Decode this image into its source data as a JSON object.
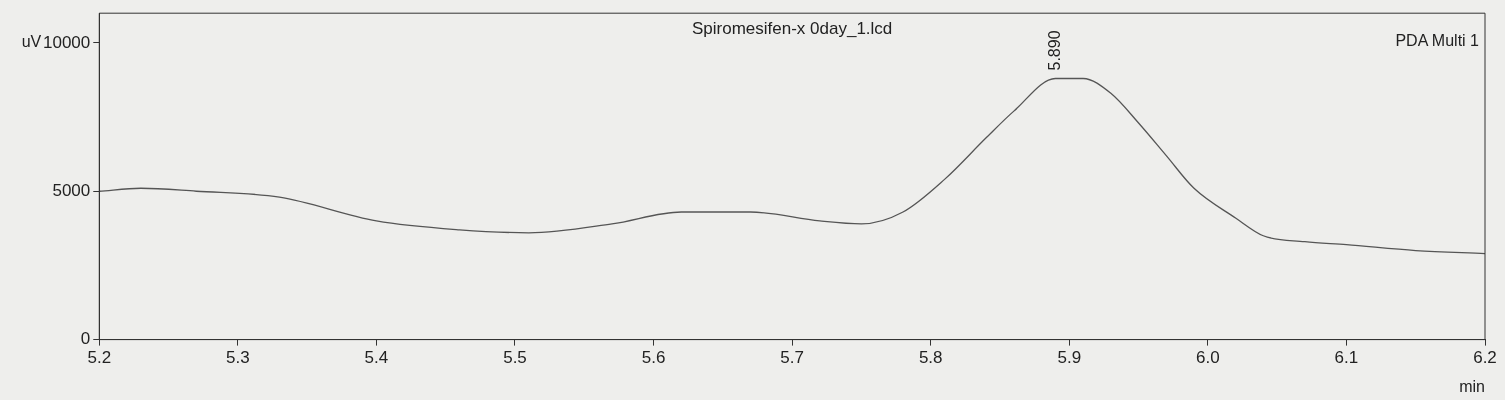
{
  "chart_data": {
    "type": "line",
    "title": "Spiromesifen-x 0day_1.lcd",
    "xlabel": "min",
    "ylabel": "uV",
    "x": [
      5.2,
      5.23,
      5.27,
      5.33,
      5.4,
      5.46,
      5.51,
      5.57,
      5.62,
      5.67,
      5.72,
      5.75,
      5.78,
      5.81,
      5.84,
      5.86,
      5.89,
      5.91,
      5.93,
      5.95,
      5.97,
      5.99,
      6.02,
      6.04,
      6.07,
      6.1,
      6.15,
      6.2
    ],
    "series": [
      {
        "color": "#555555",
        "values": [
          5000,
          5100,
          5000,
          4800,
          4000,
          3700,
          3600,
          3900,
          4300,
          4300,
          4000,
          3900,
          4300,
          5400,
          6800,
          7700,
          8800,
          8800,
          8300,
          7300,
          6200,
          5100,
          4100,
          3500,
          3300,
          3200,
          3000,
          2900
        ]
      }
    ],
    "xlim": [
      5.2,
      6.2
    ],
    "ylim": [
      0,
      11000
    ],
    "xticks": [
      5.2,
      5.3,
      5.4,
      5.5,
      5.6,
      5.7,
      5.8,
      5.9,
      {
        "value": 6,
        "label": "6.0"
      },
      6.1,
      6.2
    ],
    "yticks": [
      0,
      5000,
      10000
    ],
    "annotations": [
      {
        "text": "5.890",
        "x": 5.89,
        "y": 8800
      },
      "PDA Multi 1"
    ],
    "grid": false,
    "legend": false,
    "marker": "none",
    "line_style": "solid"
  }
}
